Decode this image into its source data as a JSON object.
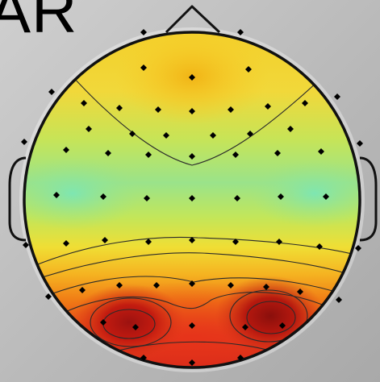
{
  "title_fragment": "AR",
  "colors": {
    "background": "#c0c0c0",
    "head_outline": "#111111",
    "electrode": "#000000",
    "contour_line": "#2a2a2a",
    "map_low": "#7fe6b0",
    "map_mid": "#f2e23a",
    "map_high": "#c81e12"
  },
  "figure": {
    "type": "eeg-scalp-topography",
    "icons": [
      "nose-icon",
      "left-ear-icon",
      "right-ear-icon"
    ]
  }
}
